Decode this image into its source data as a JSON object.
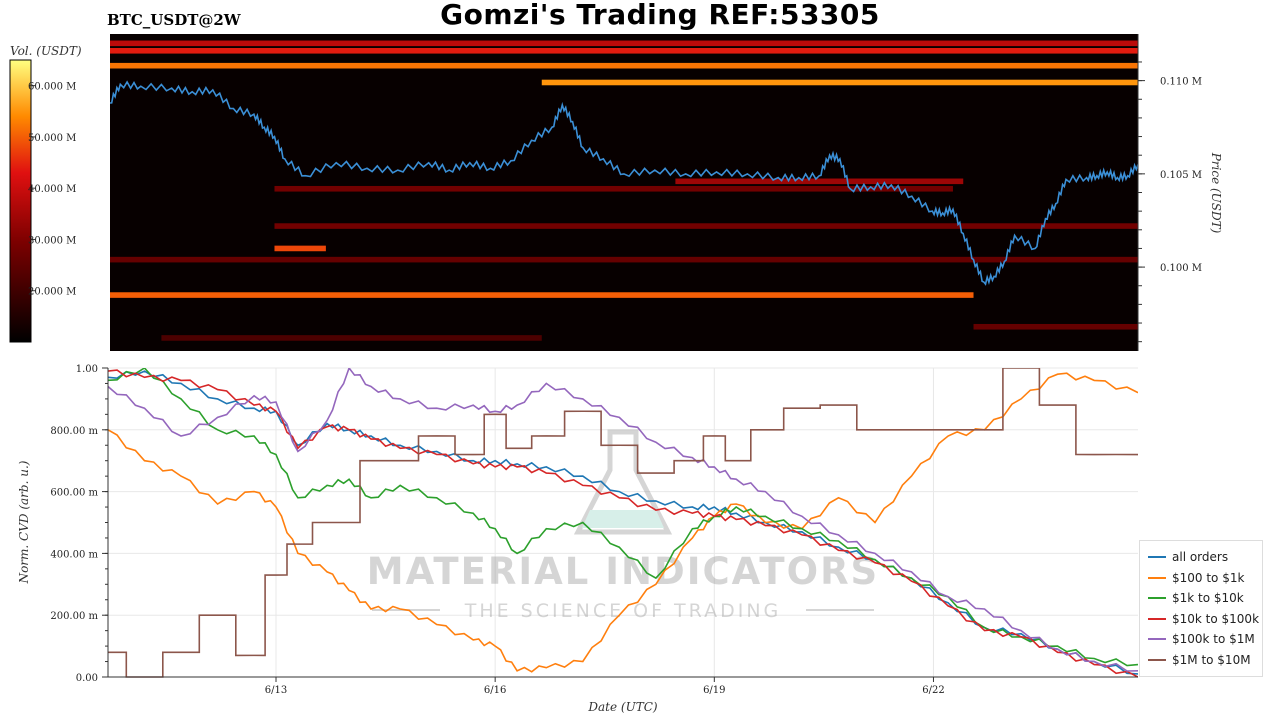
{
  "header": {
    "title": "Gomzi's Trading REF:53305",
    "pair": "BTC_USDT@2W"
  },
  "colorbar": {
    "label": "Vol. (USDT)",
    "ticks": [
      "60.000 M",
      "50.000 M",
      "40.000 M",
      "30.000 M",
      "20.000 M"
    ]
  },
  "watermark": {
    "line1": "MATERIAL INDICATORS",
    "line2": "THE SCIENCE OF TRADING"
  },
  "chart_data": [
    {
      "type": "heatmap",
      "name": "orderbook-heatmap",
      "ylabel": "Price (USDT)",
      "ytick_labels": [
        "0.110 M",
        "0.105 M",
        "0.100 M"
      ],
      "ytick_values": [
        0.11,
        0.105,
        0.1
      ],
      "ylim": [
        0.0955,
        0.1125
      ],
      "colorbar_range": [
        10,
        65
      ],
      "liquidity_bands": [
        {
          "price": 0.1116,
          "start": 0.0,
          "end": 1.0,
          "vol": 44
        },
        {
          "price": 0.1108,
          "start": 0.0,
          "end": 1.0,
          "vol": 52
        },
        {
          "price": 0.112,
          "start": 0.0,
          "end": 1.0,
          "vol": 38
        },
        {
          "price": 0.1099,
          "start": 0.42,
          "end": 1.0,
          "vol": 55
        },
        {
          "price": 0.1046,
          "start": 0.55,
          "end": 0.83,
          "vol": 34
        },
        {
          "price": 0.1042,
          "start": 0.16,
          "end": 0.82,
          "vol": 28
        },
        {
          "price": 0.1022,
          "start": 0.16,
          "end": 1.0,
          "vol": 28
        },
        {
          "price": 0.101,
          "start": 0.16,
          "end": 0.21,
          "vol": 48
        },
        {
          "price": 0.1004,
          "start": 0.0,
          "end": 1.0,
          "vol": 26
        },
        {
          "price": 0.0985,
          "start": 0.0,
          "end": 0.84,
          "vol": 50
        },
        {
          "price": 0.0968,
          "start": 0.84,
          "end": 1.0,
          "vol": 26
        },
        {
          "price": 0.0962,
          "start": 0.05,
          "end": 0.42,
          "vol": 22
        }
      ],
      "price_series": {
        "x": [
          0,
          0.01,
          0.03,
          0.06,
          0.08,
          0.1,
          0.12,
          0.14,
          0.15,
          0.16,
          0.17,
          0.19,
          0.22,
          0.25,
          0.28,
          0.31,
          0.33,
          0.35,
          0.37,
          0.39,
          0.41,
          0.43,
          0.44,
          0.45,
          0.46,
          0.48,
          0.5,
          0.53,
          0.56,
          0.59,
          0.62,
          0.65,
          0.67,
          0.69,
          0.7,
          0.71,
          0.72,
          0.74,
          0.76,
          0.78,
          0.8,
          0.81,
          0.82,
          0.83,
          0.84,
          0.85,
          0.86,
          0.87,
          0.88,
          0.9,
          0.91,
          0.92,
          0.93,
          0.95,
          0.96,
          0.97,
          0.98,
          0.99,
          1.0
        ],
        "y": [
          0.1088,
          0.1098,
          0.1097,
          0.1096,
          0.1094,
          0.1095,
          0.1085,
          0.1082,
          0.1075,
          0.107,
          0.1058,
          0.1049,
          0.1056,
          0.1053,
          0.1052,
          0.1056,
          0.1052,
          0.1056,
          0.1053,
          0.1057,
          0.1068,
          0.1075,
          0.1087,
          0.1078,
          0.1064,
          0.1058,
          0.105,
          0.1052,
          0.105,
          0.1051,
          0.105,
          0.1048,
          0.1048,
          0.1049,
          0.106,
          0.1058,
          0.1042,
          0.1043,
          0.1044,
          0.1038,
          0.103,
          0.1029,
          0.1031,
          0.1018,
          0.1004,
          0.0992,
          0.0995,
          0.1003,
          0.1017,
          0.101,
          0.1026,
          0.1034,
          0.1047,
          0.1048,
          0.1049,
          0.1051,
          0.1048,
          0.1049,
          0.1055
        ]
      }
    },
    {
      "type": "line",
      "name": "cvd-chart",
      "xlabel": "Date (UTC)",
      "ylabel": "Norm. CVD (arb. u.)",
      "xtick_labels": [
        "6/13",
        "6/16",
        "6/19",
        "6/22"
      ],
      "xtick_values": [
        2.3,
        5.3,
        8.3,
        11.3
      ],
      "xlim": [
        0,
        14.1
      ],
      "ylim": [
        0,
        1.0
      ],
      "ytick_labels": [
        "1.00",
        "800.00 m",
        "600.00 m",
        "400.00 m",
        "200.00 m",
        "0.00"
      ],
      "ytick_values": [
        1.0,
        0.8,
        0.6,
        0.4,
        0.2,
        0.0
      ],
      "x": [
        0,
        0.5,
        1.0,
        1.5,
        2.0,
        2.3,
        2.6,
        3.0,
        3.3,
        3.6,
        4.0,
        4.5,
        5.0,
        5.3,
        5.6,
        6.0,
        6.5,
        7.0,
        7.5,
        8.0,
        8.3,
        8.6,
        9.0,
        9.5,
        10.0,
        10.5,
        11.0,
        11.5,
        12.0,
        12.5,
        13.0,
        13.5,
        14.1
      ],
      "series": [
        {
          "name": "all orders",
          "color": "#1f77b4",
          "values": [
            0.97,
            0.99,
            0.95,
            0.9,
            0.87,
            0.86,
            0.75,
            0.82,
            0.8,
            0.78,
            0.75,
            0.73,
            0.7,
            0.7,
            0.69,
            0.68,
            0.65,
            0.6,
            0.57,
            0.55,
            0.55,
            0.53,
            0.5,
            0.47,
            0.42,
            0.38,
            0.32,
            0.24,
            0.16,
            0.14,
            0.09,
            0.05,
            0.01
          ]
        },
        {
          "name": "$100 to $1k",
          "color": "#ff7f0e",
          "values": [
            0.8,
            0.7,
            0.65,
            0.56,
            0.6,
            0.55,
            0.4,
            0.34,
            0.28,
            0.22,
            0.22,
            0.17,
            0.12,
            0.1,
            0.02,
            0.03,
            0.05,
            0.2,
            0.3,
            0.45,
            0.52,
            0.56,
            0.5,
            0.48,
            0.58,
            0.5,
            0.65,
            0.78,
            0.8,
            0.9,
            0.98,
            0.96,
            0.92
          ]
        },
        {
          "name": "$1k to $10k",
          "color": "#2ca02c",
          "values": [
            0.96,
            1.0,
            0.9,
            0.8,
            0.78,
            0.72,
            0.58,
            0.62,
            0.64,
            0.58,
            0.62,
            0.58,
            0.53,
            0.48,
            0.4,
            0.48,
            0.5,
            0.42,
            0.32,
            0.48,
            0.52,
            0.55,
            0.52,
            0.48,
            0.44,
            0.38,
            0.32,
            0.26,
            0.16,
            0.13,
            0.1,
            0.06,
            0.04
          ]
        },
        {
          "name": "$10k to $100k",
          "color": "#d62728",
          "values": [
            0.99,
            0.97,
            0.96,
            0.93,
            0.88,
            0.86,
            0.74,
            0.81,
            0.8,
            0.77,
            0.74,
            0.72,
            0.69,
            0.68,
            0.68,
            0.66,
            0.62,
            0.58,
            0.54,
            0.53,
            0.52,
            0.51,
            0.49,
            0.46,
            0.41,
            0.37,
            0.31,
            0.23,
            0.15,
            0.13,
            0.08,
            0.04,
            0.0
          ]
        },
        {
          "name": "$100k to $1M",
          "color": "#9467bd",
          "values": [
            0.94,
            0.87,
            0.78,
            0.84,
            0.91,
            0.89,
            0.73,
            0.83,
            1.0,
            0.94,
            0.9,
            0.87,
            0.88,
            0.86,
            0.88,
            0.95,
            0.9,
            0.84,
            0.76,
            0.71,
            0.68,
            0.64,
            0.6,
            0.52,
            0.46,
            0.4,
            0.34,
            0.26,
            0.22,
            0.15,
            0.09,
            0.05,
            0.02
          ]
        },
        {
          "name": "$1M to $10M",
          "color": "#8c564b",
          "values": [
            0.08,
            0.0,
            0.08,
            0.2,
            0.07,
            0.33,
            0.43,
            0.5,
            0.5,
            0.7,
            0.7,
            0.78,
            0.72,
            0.85,
            0.74,
            0.78,
            0.86,
            0.75,
            0.66,
            0.7,
            0.78,
            0.7,
            0.8,
            0.87,
            0.88,
            0.8,
            0.8,
            0.8,
            0.8,
            1.0,
            0.88,
            0.72,
            0.72
          ]
        }
      ]
    }
  ]
}
